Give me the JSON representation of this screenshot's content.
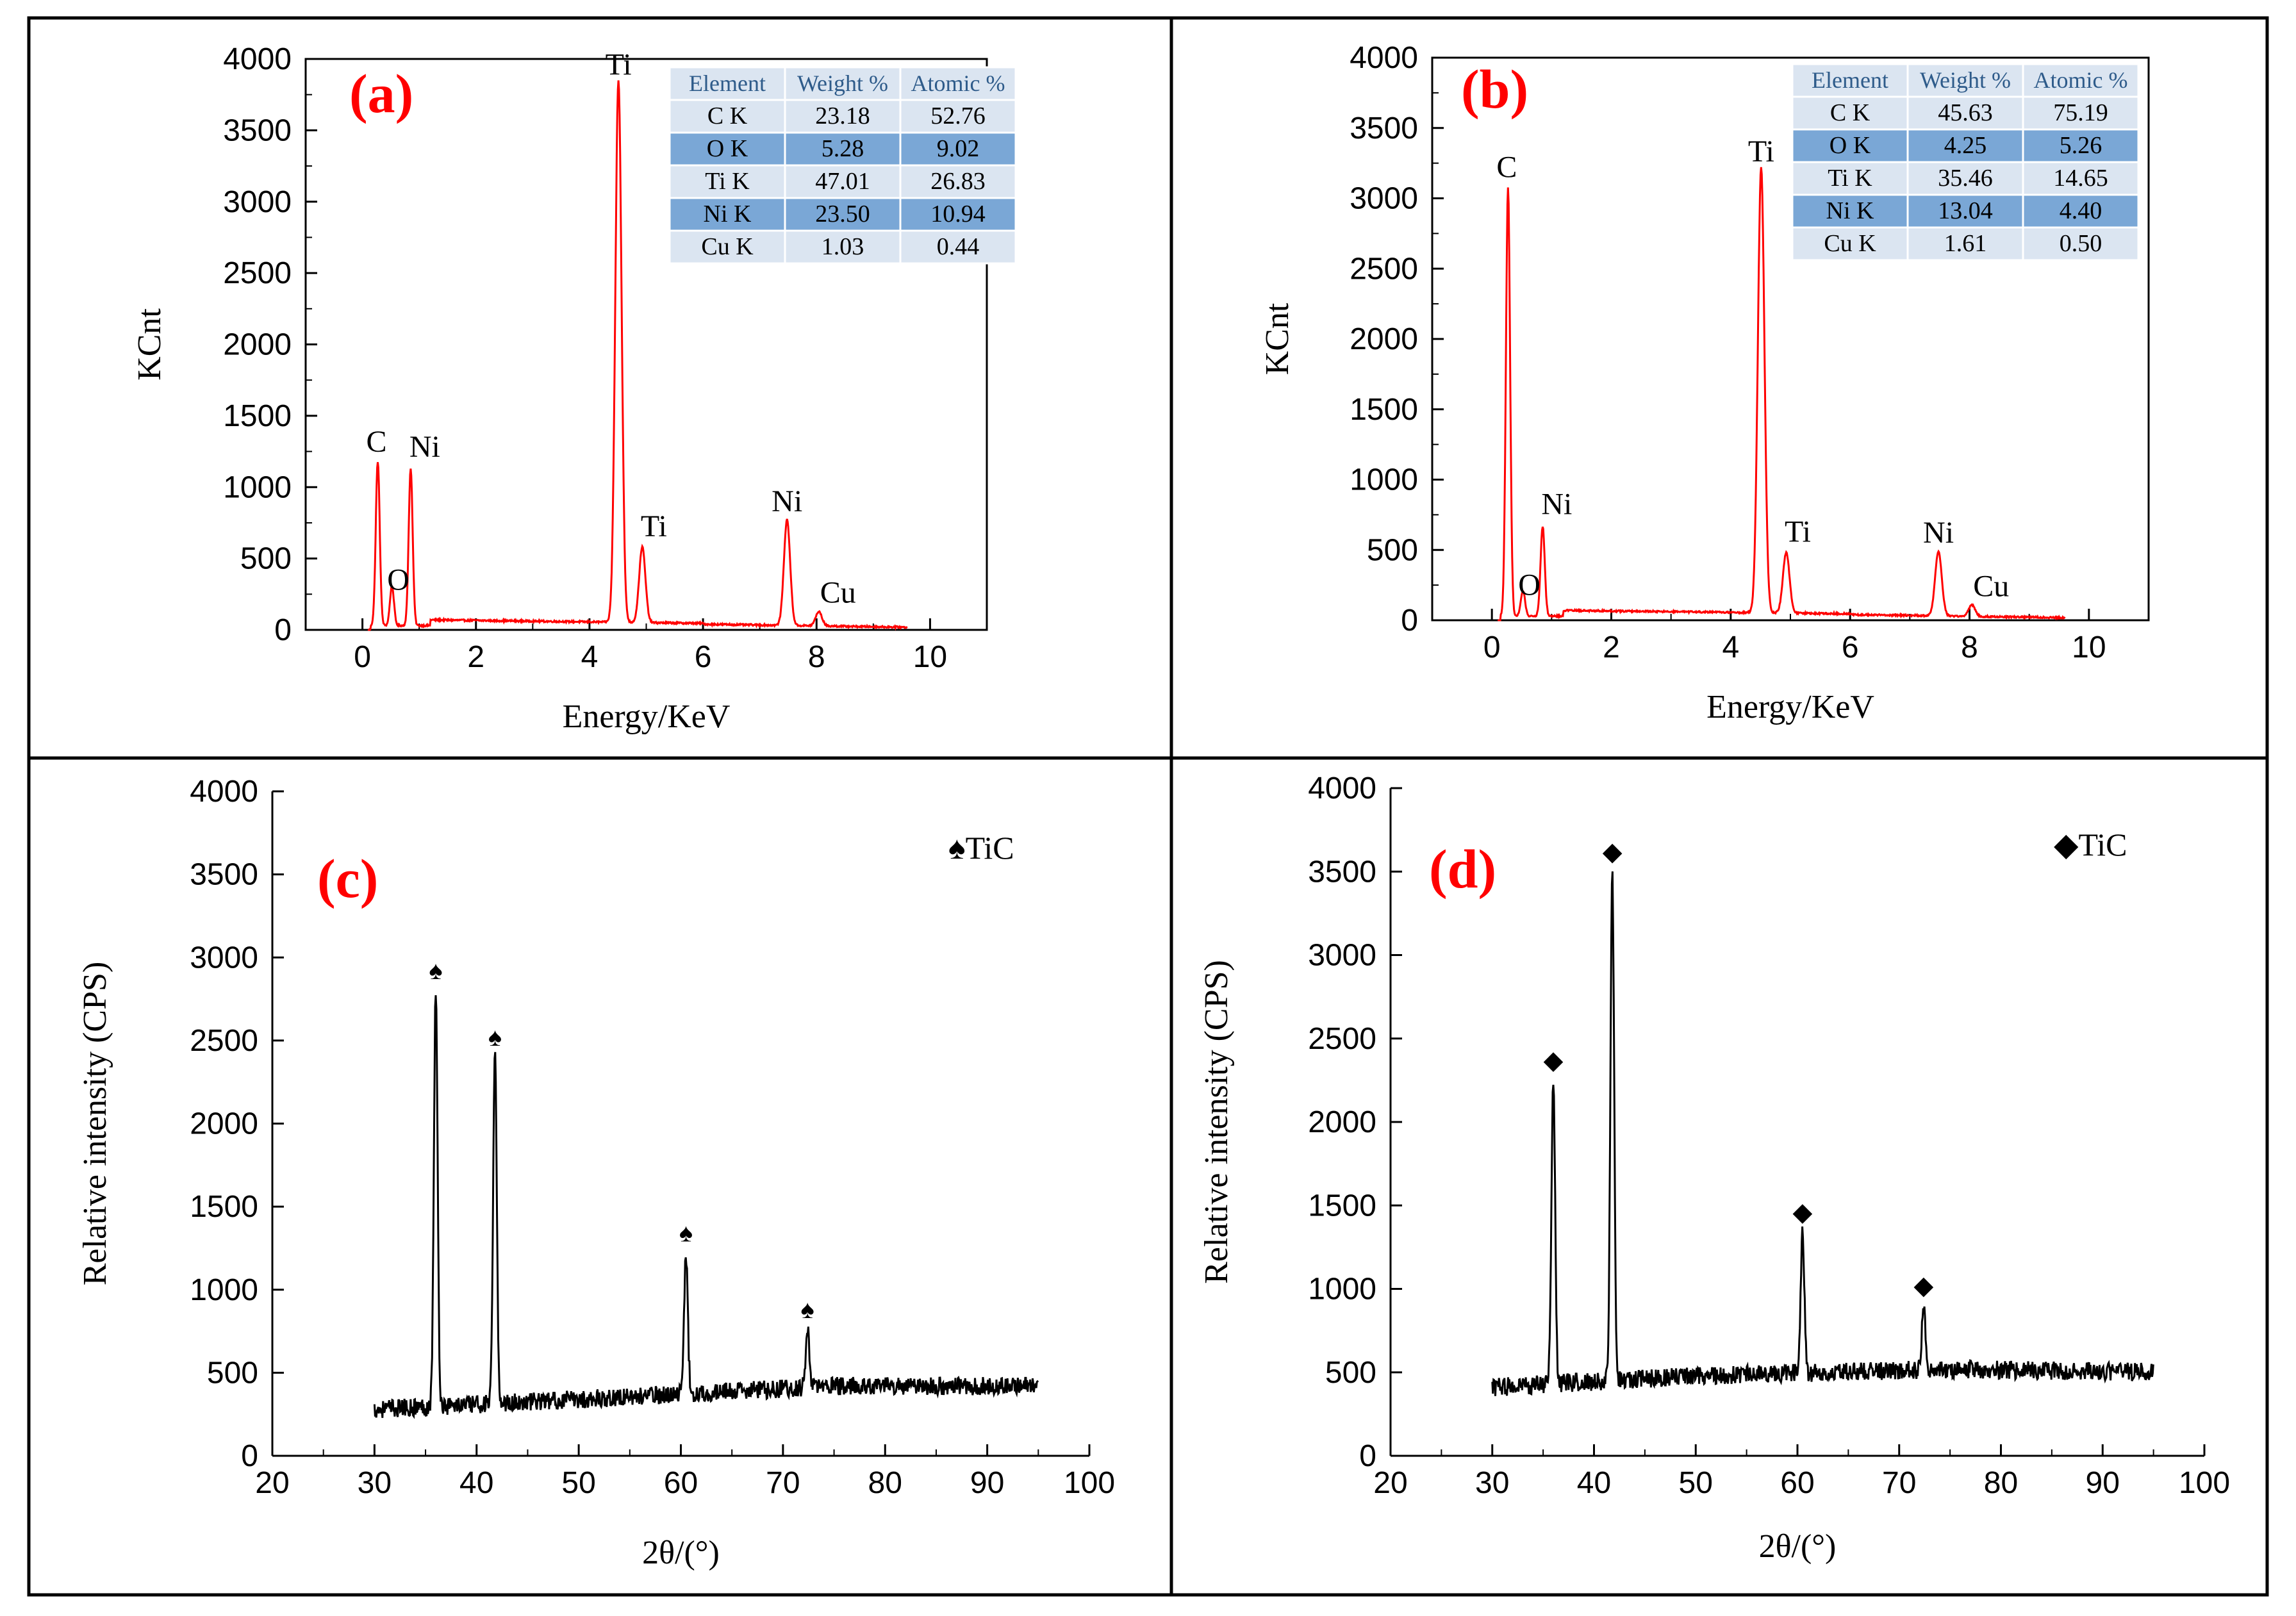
{
  "panels": [
    {
      "label": "(a)",
      "xlabel": "Energy/KeV",
      "ylabel": "KCnt"
    },
    {
      "label": "(b)",
      "xlabel": "Energy/KeV",
      "ylabel": "KCnt"
    },
    {
      "label": "(c)",
      "xlabel": "2θ/(°)",
      "ylabel": "Relative intensity (CPS)",
      "legend": "TiC"
    },
    {
      "label": "(d)",
      "xlabel": "2θ/(°)",
      "ylabel": "Relative intensity (CPS)",
      "legend": "TiC"
    }
  ],
  "colors": {
    "eds_line": "#ff0000",
    "xrd_line": "#000000",
    "label_red": "#ff0000",
    "table_light": "#dbe5f1",
    "table_dark": "#7aa7d6",
    "table_header": "#2e5b8a"
  },
  "chart_data": [
    {
      "type": "line",
      "label": "(a)",
      "xlabel": "Energy/KeV",
      "ylabel": "KCnt",
      "xlim": [
        -1,
        11
      ],
      "ylim": [
        0,
        4000
      ],
      "xticks": [
        0,
        2,
        4,
        6,
        8,
        10
      ],
      "yticks": [
        0,
        500,
        1000,
        1500,
        2000,
        2500,
        3000,
        3500,
        4000
      ],
      "peaks": [
        {
          "x": 0.27,
          "y": 1150,
          "label": "C"
        },
        {
          "x": 0.52,
          "y": 280,
          "label": "O"
        },
        {
          "x": 0.85,
          "y": 1100,
          "label": "Ni"
        },
        {
          "x": 4.51,
          "y": 3800,
          "label": "Ti"
        },
        {
          "x": 4.93,
          "y": 530,
          "label": "Ti"
        },
        {
          "x": 7.48,
          "y": 740,
          "label": "Ni"
        },
        {
          "x": 8.04,
          "y": 100,
          "label": "Cu"
        }
      ],
      "table": {
        "headers": [
          "Element",
          "Weight %",
          "Atomic %"
        ],
        "rows": [
          [
            "C K",
            "23.18",
            "52.76"
          ],
          [
            "O K",
            "5.28",
            "9.02"
          ],
          [
            "Ti K",
            "47.01",
            "26.83"
          ],
          [
            "Ni K",
            "23.50",
            "10.94"
          ],
          [
            "Cu K",
            "1.03",
            "0.44"
          ]
        ]
      }
    },
    {
      "type": "line",
      "label": "(b)",
      "xlabel": "Energy/KeV",
      "ylabel": "KCnt",
      "xlim": [
        -1,
        11
      ],
      "ylim": [
        0,
        4000
      ],
      "xticks": [
        0,
        2,
        4,
        6,
        8,
        10
      ],
      "yticks": [
        0,
        500,
        1000,
        1500,
        2000,
        2500,
        3000,
        3500,
        4000
      ],
      "peaks": [
        {
          "x": 0.27,
          "y": 3050,
          "label": "C"
        },
        {
          "x": 0.52,
          "y": 180,
          "label": "O"
        },
        {
          "x": 0.85,
          "y": 640,
          "label": "Ni"
        },
        {
          "x": 4.51,
          "y": 3170,
          "label": "Ti"
        },
        {
          "x": 4.93,
          "y": 430,
          "label": "Ti"
        },
        {
          "x": 7.48,
          "y": 460,
          "label": "Ni"
        },
        {
          "x": 8.04,
          "y": 80,
          "label": "Cu"
        }
      ],
      "table": {
        "headers": [
          "Element",
          "Weight %",
          "Atomic %"
        ],
        "rows": [
          [
            "C K",
            "45.63",
            "75.19"
          ],
          [
            "O K",
            "4.25",
            "5.26"
          ],
          [
            "Ti K",
            "35.46",
            "14.65"
          ],
          [
            "Ni K",
            "13.04",
            "4.40"
          ],
          [
            "Cu K",
            "1.61",
            "0.50"
          ]
        ]
      }
    },
    {
      "type": "line",
      "label": "(c)",
      "xlabel": "2θ/(°)",
      "ylabel": "Relative intensity (CPS)",
      "xlim": [
        20,
        100
      ],
      "ylim": [
        0,
        4000
      ],
      "xticks": [
        20,
        30,
        40,
        50,
        60,
        70,
        80,
        90,
        100
      ],
      "yticks": [
        0,
        500,
        1000,
        1500,
        2000,
        2500,
        3000,
        3500,
        4000
      ],
      "legend": "TiC",
      "baseline": [
        [
          30,
          280
        ],
        [
          50,
          340
        ],
        [
          75,
          420
        ],
        [
          95,
          420
        ]
      ],
      "peaks": [
        {
          "x": 36,
          "y": 2800,
          "marker": "♠"
        },
        {
          "x": 41.8,
          "y": 2400,
          "marker": "♠"
        },
        {
          "x": 60.5,
          "y": 1220,
          "marker": "♠"
        },
        {
          "x": 72.4,
          "y": 760,
          "marker": "♠"
        }
      ]
    },
    {
      "type": "line",
      "label": "(d)",
      "xlabel": "2θ/(°)",
      "ylabel": "Relative intensity (CPS)",
      "xlim": [
        20,
        100
      ],
      "ylim": [
        0,
        4000
      ],
      "xticks": [
        20,
        30,
        40,
        50,
        60,
        70,
        80,
        90,
        100
      ],
      "yticks": [
        0,
        500,
        1000,
        1500,
        2000,
        2500,
        3000,
        3500,
        4000
      ],
      "legend": "TiC",
      "baseline": [
        [
          30,
          410
        ],
        [
          50,
          480
        ],
        [
          75,
          520
        ],
        [
          95,
          500
        ]
      ],
      "peaks": [
        {
          "x": 36,
          "y": 2250,
          "marker": "◆"
        },
        {
          "x": 41.8,
          "y": 3500,
          "marker": "◆"
        },
        {
          "x": 60.5,
          "y": 1340,
          "marker": "◆"
        },
        {
          "x": 72.4,
          "y": 900,
          "marker": "◆"
        }
      ]
    }
  ]
}
